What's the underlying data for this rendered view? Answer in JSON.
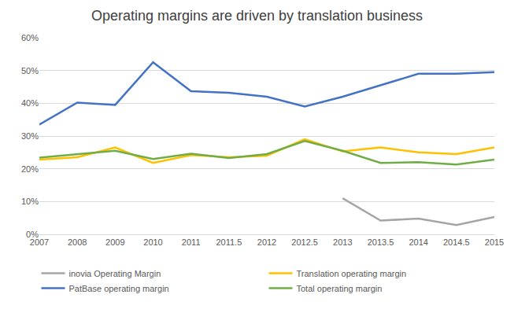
{
  "chart_data": {
    "type": "line",
    "title": "Operating margins are driven by translation business",
    "categories": [
      "2007",
      "2008",
      "2009",
      "2010",
      "2011",
      "2011.5",
      "2012",
      "2012.5",
      "2013",
      "2013.5",
      "2014",
      "2014.5",
      "2015"
    ],
    "series": [
      {
        "name": "inovia Operating Margin",
        "color": "#A5A5A5",
        "values": [
          null,
          null,
          null,
          null,
          null,
          null,
          null,
          null,
          11,
          4.2,
          4.8,
          2.8,
          5.3
        ]
      },
      {
        "name": "Translation operating margin",
        "color": "#FFC000",
        "values": [
          22.8,
          23.5,
          26.5,
          21.8,
          24.2,
          23.5,
          24,
          29,
          25.3,
          26.5,
          25,
          24.5,
          26.5
        ]
      },
      {
        "name": "PatBase operating margin",
        "color": "#4472C4",
        "values": [
          33.5,
          40.2,
          39.5,
          52.5,
          43.7,
          43.2,
          42,
          39,
          42,
          45.5,
          49,
          49,
          49.5
        ]
      },
      {
        "name": "Total operating margin",
        "color": "#70AD47",
        "values": [
          23.4,
          24.5,
          25.5,
          23,
          24.6,
          23.3,
          24.5,
          28.5,
          25.5,
          21.8,
          22,
          21.3,
          22.8
        ]
      }
    ],
    "ylim": [
      0,
      60
    ],
    "yticks": [
      {
        "value": 0,
        "label": "0%"
      },
      {
        "value": 10,
        "label": "10%"
      },
      {
        "value": 20,
        "label": "20%"
      },
      {
        "value": 30,
        "label": "30%"
      },
      {
        "value": 40,
        "label": "40%"
      },
      {
        "value": 50,
        "label": "50%"
      },
      {
        "value": 60,
        "label": "60%"
      }
    ],
    "grid": true,
    "legend": "bottom"
  }
}
